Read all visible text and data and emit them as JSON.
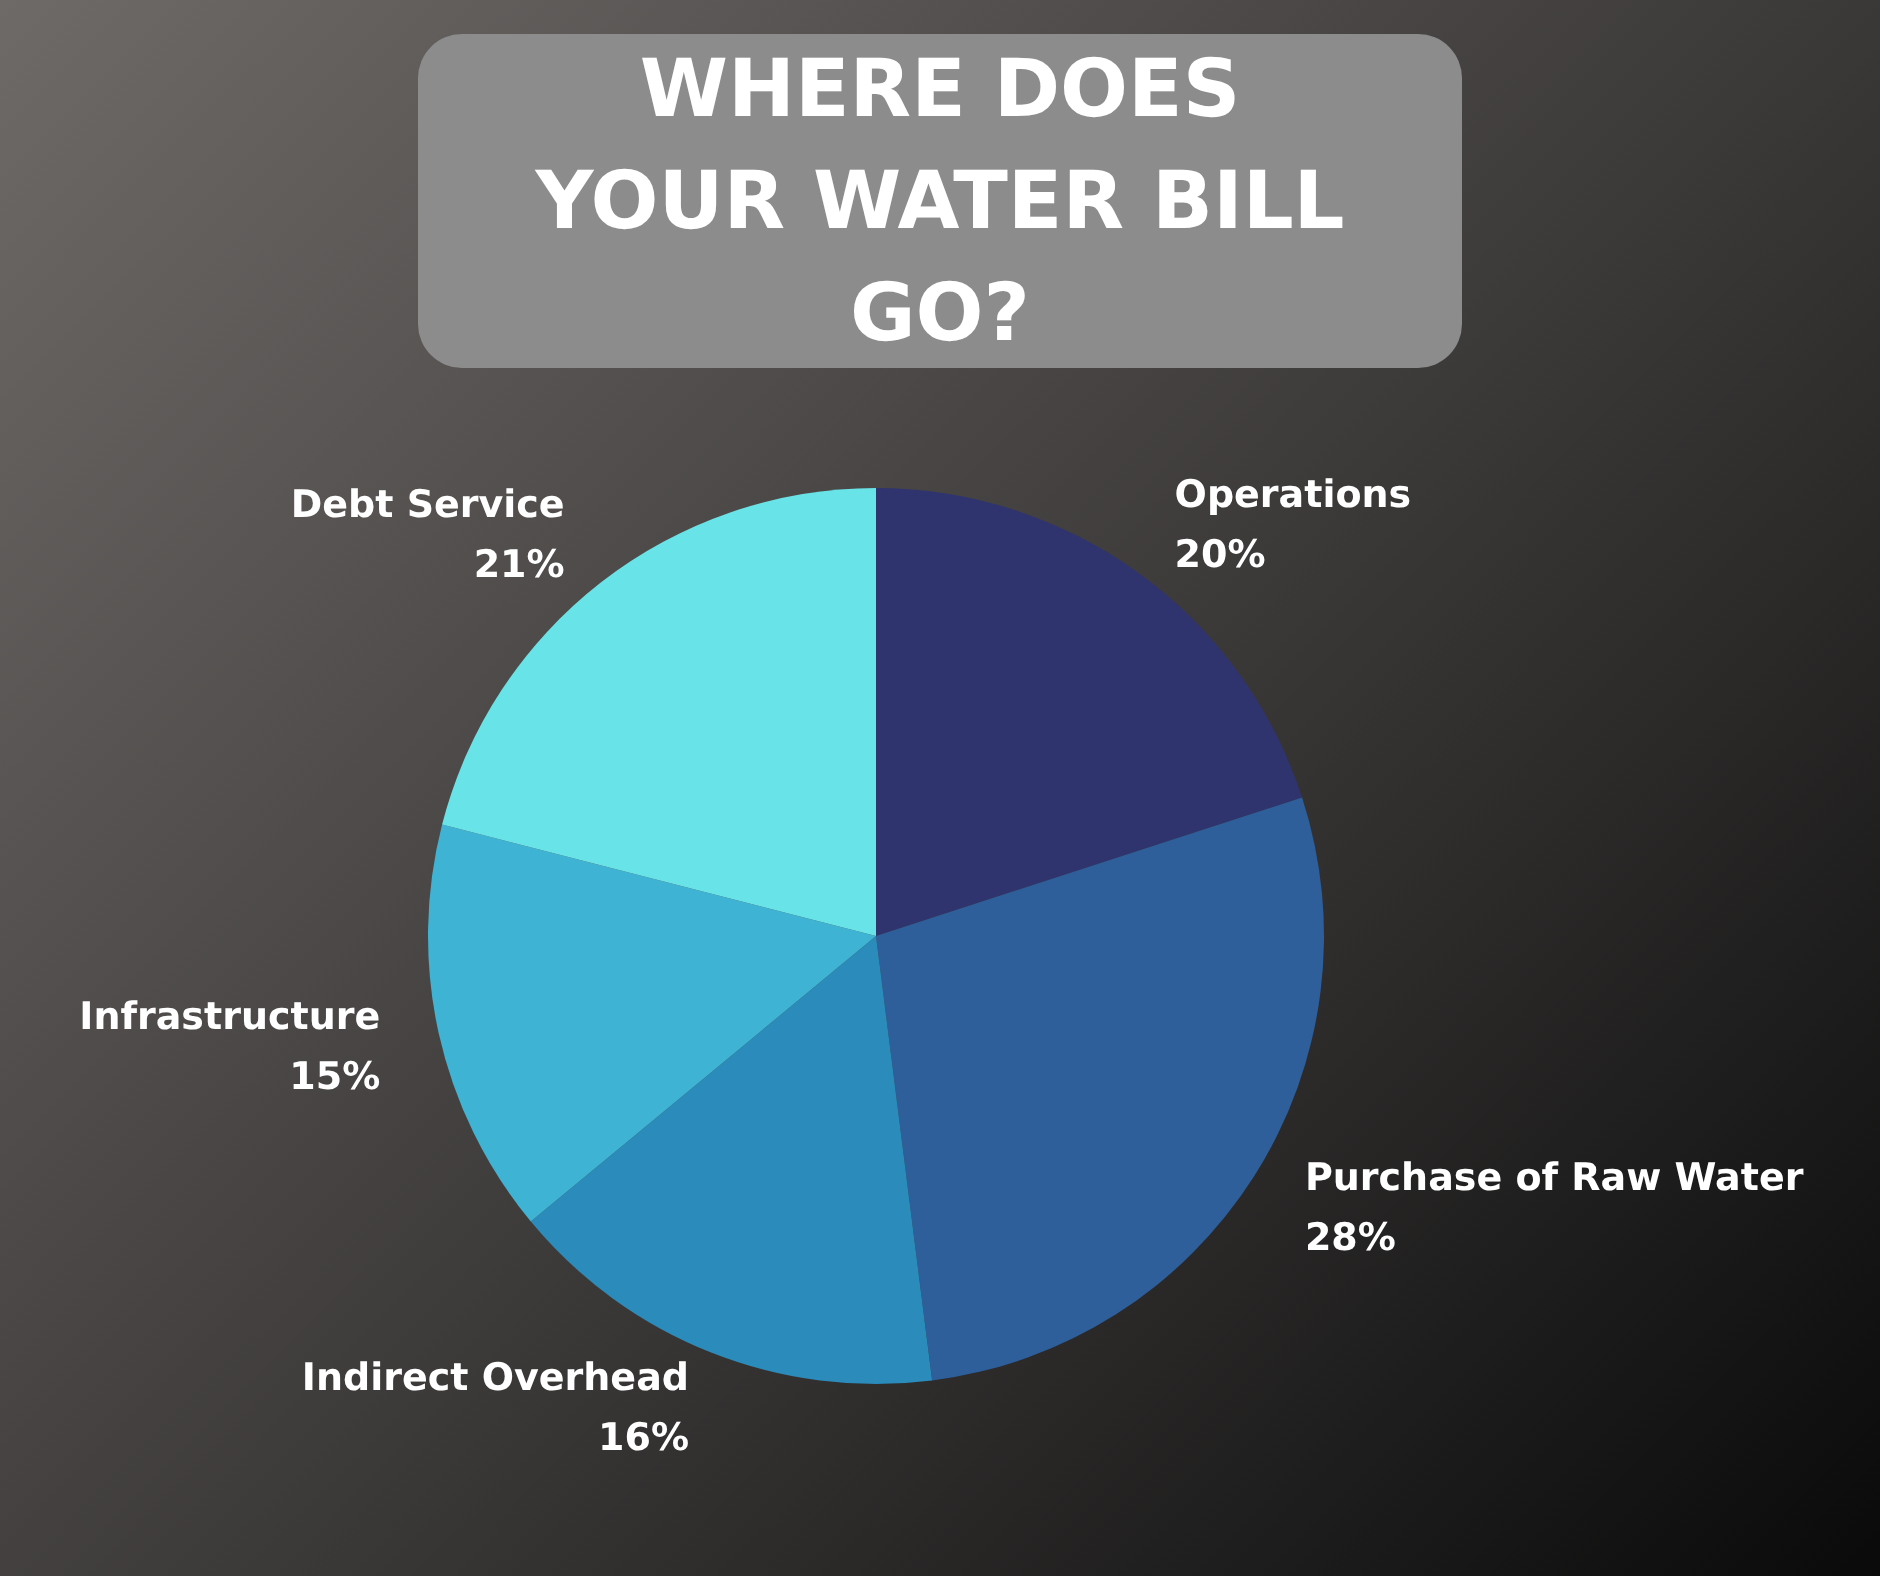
{
  "chart_data": {
    "type": "pie",
    "title": "WHERE DOES YOUR WATER BILL GO?",
    "categories": [
      "Operations",
      "Purchase of Raw Water",
      "Indirect Overhead",
      "Infrastructure",
      "Debt Service"
    ],
    "values": [
      20,
      28,
      16,
      15,
      21
    ],
    "colors": [
      "#30346e",
      "#2e5f9a",
      "#2b8bbb",
      "#3fb3d4",
      "#68e4e8"
    ],
    "value_labels": [
      "20%",
      "28%",
      "16%",
      "15%",
      "21%"
    ],
    "legend": false
  }
}
